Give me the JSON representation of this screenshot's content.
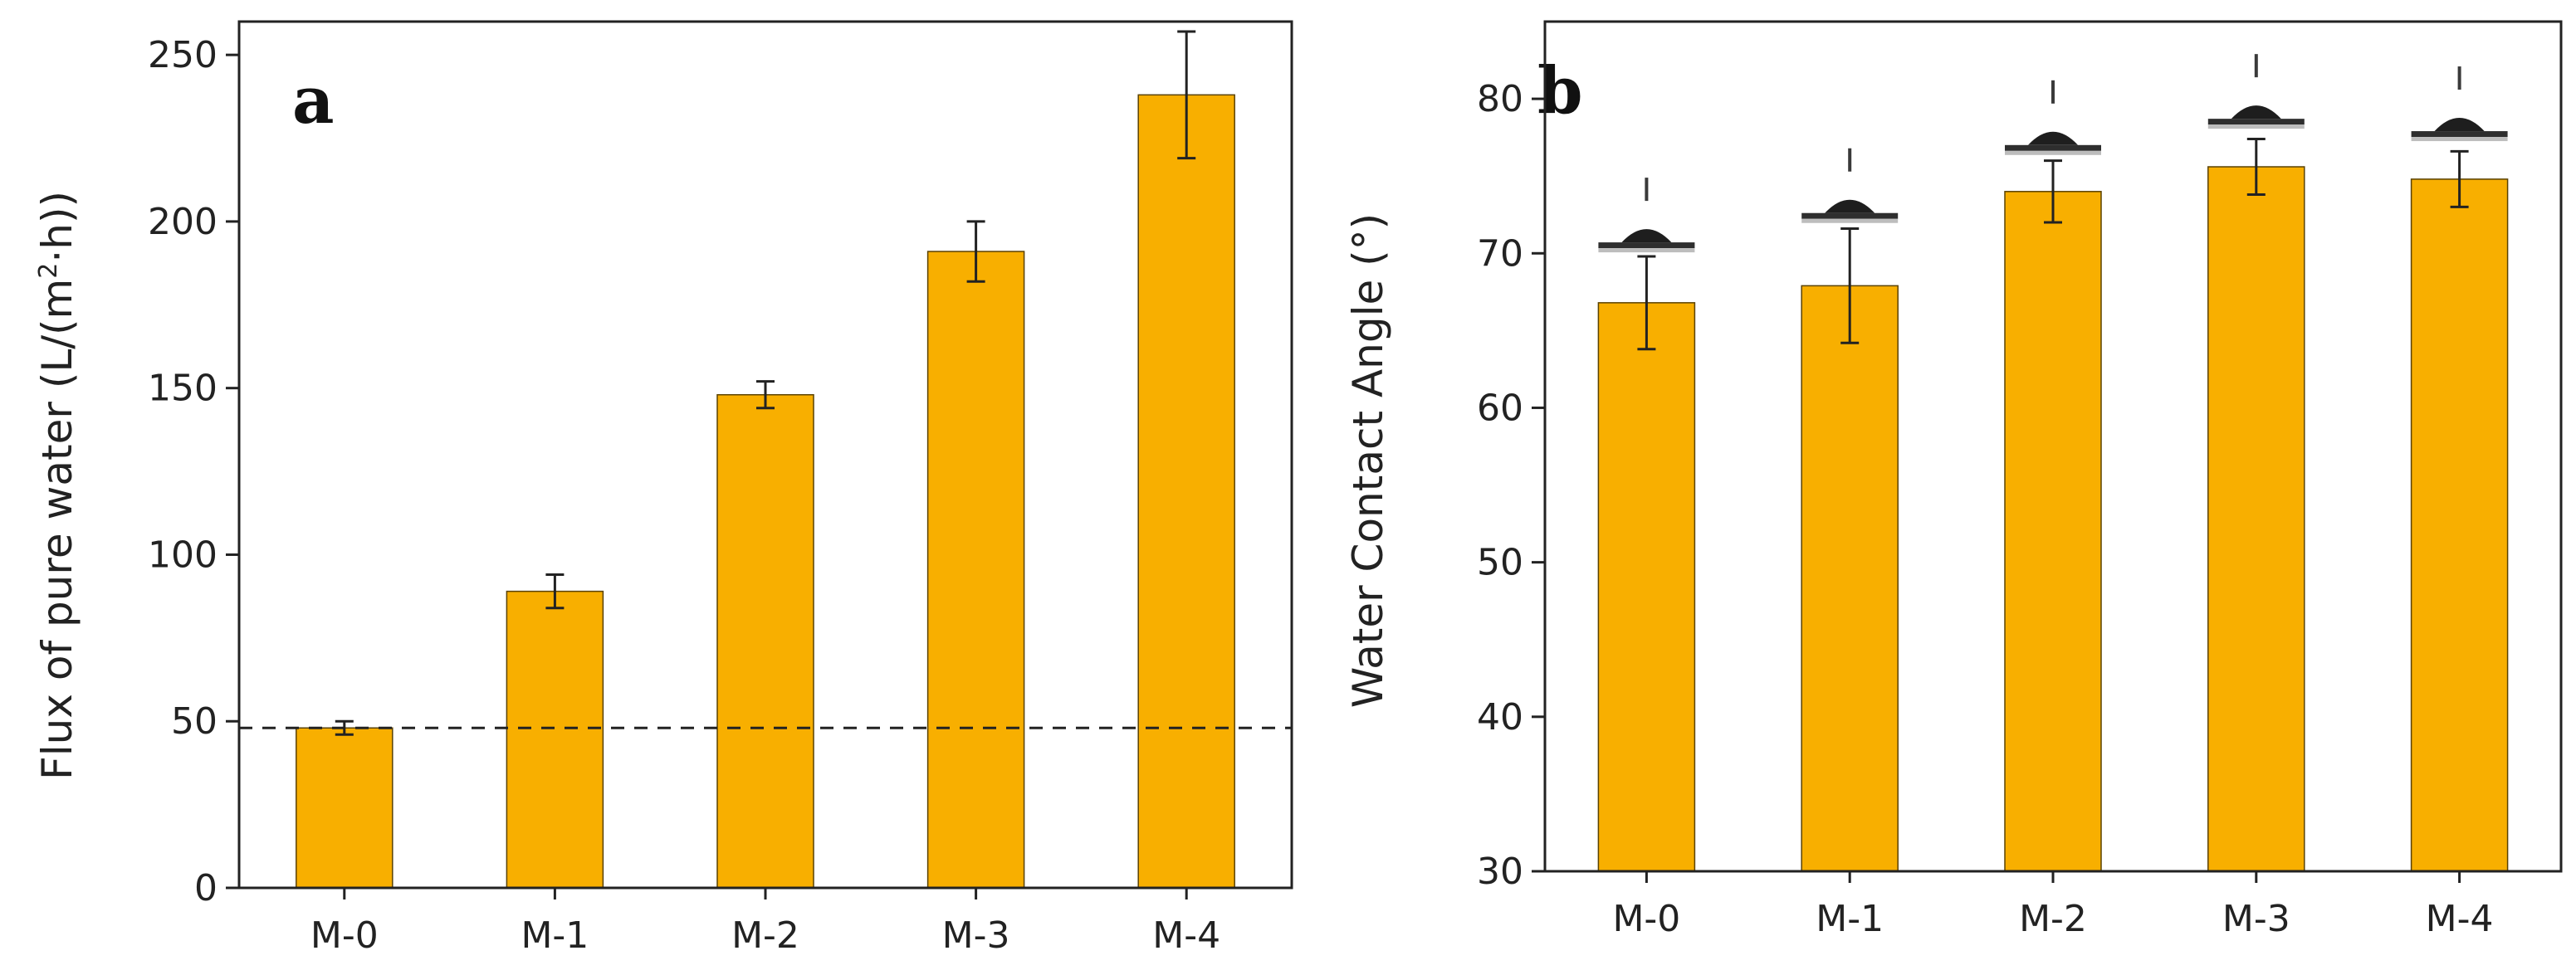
{
  "chart_data": [
    {
      "panel": "a",
      "type": "bar",
      "categories": [
        "M-0",
        "M-1",
        "M-2",
        "M-3",
        "M-4"
      ],
      "values": [
        48,
        89,
        148,
        191,
        238
      ],
      "errors": [
        2,
        5,
        4,
        9,
        19
      ],
      "ylabel_main": "Flux of pure water (L/(m",
      "ylabel_sup": "2",
      "ylabel_tail": "·h))",
      "xlabel": "",
      "ylim": [
        0,
        260
      ],
      "yticks": [
        "0",
        "50",
        "100",
        "150",
        "200",
        "250"
      ],
      "reference_line": 48,
      "bar_color": "#F8AF00"
    },
    {
      "panel": "b",
      "type": "bar",
      "categories": [
        "M-0",
        "M-1",
        "M-2",
        "M-3",
        "M-4"
      ],
      "values": [
        66.8,
        67.9,
        74.0,
        75.6,
        74.8
      ],
      "errors": [
        3.0,
        3.7,
        2.0,
        1.8,
        1.8
      ],
      "droplet_angles": [
        70.6,
        72.5,
        76.9,
        78.6,
        77.8
      ],
      "ylabel": "Water Contact Angle (°)",
      "xlabel": "",
      "ylim": [
        30,
        85
      ],
      "yticks": [
        "30",
        "40",
        "50",
        "60",
        "70",
        "80"
      ],
      "bar_color": "#F8AF00"
    }
  ]
}
